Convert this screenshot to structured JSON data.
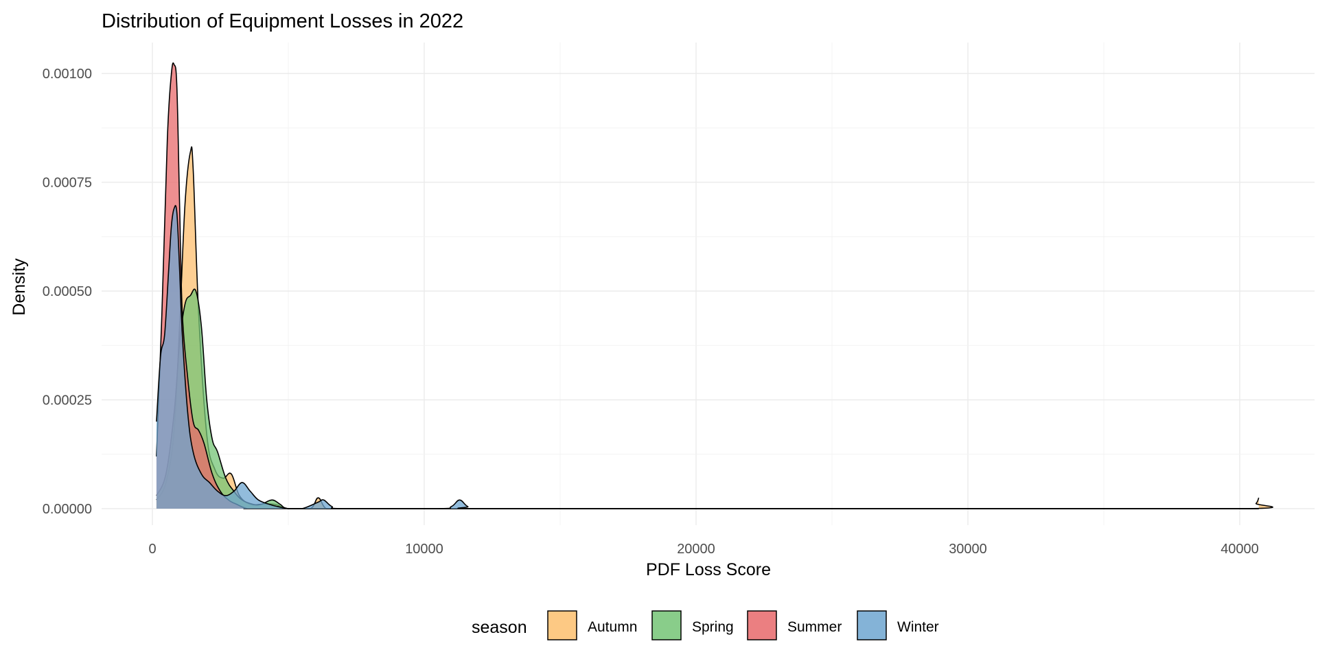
{
  "chart_data": {
    "type": "area",
    "subtype": "density",
    "title": "Distribution of Equipment Losses in 2022",
    "xlabel": "PDF Loss Score",
    "ylabel": "Density",
    "xlim": [
      -500,
      42000
    ],
    "ylim": [
      0,
      0.00107
    ],
    "x_ticks": [
      0,
      10000,
      20000,
      30000,
      40000
    ],
    "x_tick_labels": [
      "0",
      "10000",
      "20000",
      "30000",
      "40000"
    ],
    "y_ticks": [
      0,
      0.00025,
      0.0005,
      0.00075,
      0.001
    ],
    "y_tick_labels": [
      "0.00000",
      "0.00025",
      "0.00050",
      "0.00075",
      "0.00100"
    ],
    "grid": true,
    "legend": {
      "title": "season",
      "position": "bottom"
    },
    "series": [
      {
        "name": "Autumn",
        "color": "#fdbf6f",
        "x": [
          150,
          500,
          800,
          1000,
          1200,
          1400,
          1500,
          1700,
          2000,
          2300,
          2600,
          2900,
          3200,
          3600,
          4000,
          4500,
          5000,
          5800,
          6100,
          6400,
          7000,
          10000,
          20000,
          30000,
          40300,
          40600,
          40700
        ],
        "values": [
          2e-05,
          6e-05,
          0.00018,
          0.00042,
          0.0007,
          0.00082,
          0.00078,
          0.00045,
          0.00017,
          9e-05,
          7e-05,
          8e-05,
          3e-05,
          1e-05,
          1e-05,
          1e-05,
          0,
          0,
          2.5e-05,
          0,
          0,
          0,
          0,
          0,
          0,
          1.2e-05,
          2.5e-05
        ]
      },
      {
        "name": "Spring",
        "color": "#74c476",
        "x": [
          150,
          500,
          800,
          1000,
          1200,
          1400,
          1600,
          1800,
          2000,
          2200,
          2400,
          2700,
          3000,
          3300,
          3700,
          4000,
          4400,
          4700,
          5000,
          6000,
          10000,
          20000,
          30000,
          40700
        ],
        "values": [
          3e-05,
          8e-05,
          0.00022,
          0.00038,
          0.00047,
          0.00049,
          0.0005,
          0.00042,
          0.00025,
          0.00016,
          0.00013,
          7e-05,
          4e-05,
          2e-05,
          1e-05,
          1e-05,
          2e-05,
          1e-05,
          0,
          0,
          0,
          0,
          0,
          0
        ]
      },
      {
        "name": "Summer",
        "color": "#e8696b",
        "x": [
          150,
          350,
          550,
          700,
          800,
          900,
          1000,
          1100,
          1300,
          1500,
          1700,
          1900,
          2200,
          2500,
          2800,
          3100,
          3500,
          4000,
          10000,
          20000,
          30000,
          40700
        ],
        "values": [
          0.00012,
          0.00045,
          0.00085,
          0.001,
          0.00102,
          0.00097,
          0.0007,
          0.00045,
          0.0003,
          0.0002,
          0.00018,
          0.00015,
          8e-05,
          4e-05,
          2e-05,
          1e-05,
          0,
          0,
          0,
          0,
          0,
          0
        ]
      },
      {
        "name": "Winter",
        "color": "#6ea6d0",
        "x": [
          150,
          300,
          450,
          600,
          700,
          800,
          900,
          1000,
          1100,
          1300,
          1500,
          1800,
          2100,
          2400,
          2700,
          3000,
          3300,
          3600,
          3900,
          4300,
          4600,
          5000,
          5500,
          6100,
          6300,
          6600,
          7000,
          10500,
          11000,
          11300,
          11600,
          12000,
          20000,
          30000,
          40700
        ],
        "values": [
          0.0002,
          0.00035,
          0.0004,
          0.00055,
          0.00065,
          0.00069,
          0.00068,
          0.00055,
          0.0004,
          0.00022,
          0.00013,
          8e-05,
          6e-05,
          4e-05,
          3e-05,
          4e-05,
          6e-05,
          4e-05,
          2e-05,
          1e-05,
          5e-06,
          0,
          0,
          1.5e-05,
          2e-05,
          5e-06,
          0,
          0,
          5e-06,
          2e-05,
          5e-06,
          0,
          0,
          0,
          0
        ]
      }
    ]
  }
}
